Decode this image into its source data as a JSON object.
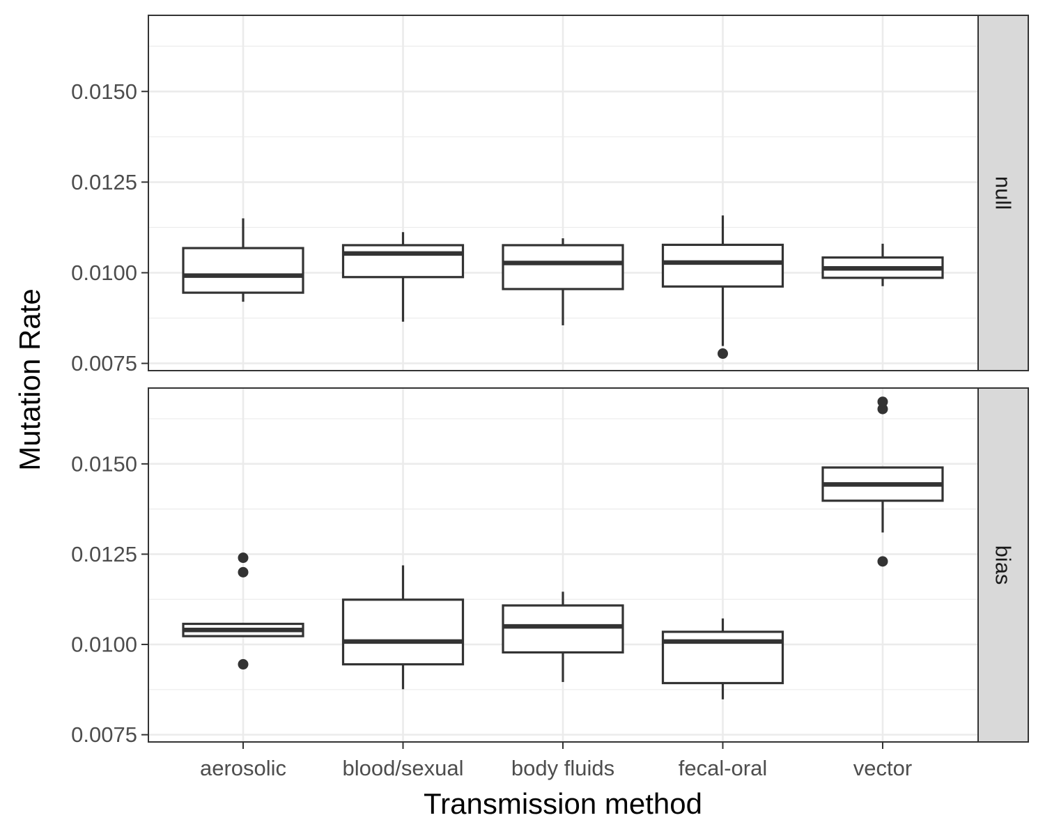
{
  "chart_data": {
    "type": "boxplot",
    "xlabel": "Transmission method",
    "ylabel": "Mutation Rate",
    "categories": [
      "aerosolic",
      "blood/sexual",
      "body fluids",
      "fecal-oral",
      "vector"
    ],
    "y_ticks": [
      "0.0075",
      "0.0100",
      "0.0125",
      "0.0150"
    ],
    "ylim": [
      0.0073,
      0.0171
    ],
    "grid": true,
    "facet_layout": "rows, strip labels on right",
    "colors": {
      "box_stroke": "#333333",
      "grid": "#ebebeb",
      "strip_fill": "#d9d9d9",
      "panel_border": "#333333"
    },
    "panels": [
      {
        "label": "null",
        "boxes": [
          {
            "category": "aerosolic",
            "whisker_low": 0.0092,
            "q1": 0.00945,
            "median": 0.00992,
            "q3": 0.01068,
            "whisker_high": 0.0115,
            "outliers": []
          },
          {
            "category": "blood/sexual",
            "whisker_low": 0.00865,
            "q1": 0.00988,
            "median": 0.01053,
            "q3": 0.01076,
            "whisker_high": 0.01112,
            "outliers": []
          },
          {
            "category": "body fluids",
            "whisker_low": 0.00855,
            "q1": 0.00955,
            "median": 0.01027,
            "q3": 0.01076,
            "whisker_high": 0.01095,
            "outliers": []
          },
          {
            "category": "fecal-oral",
            "whisker_low": 0.00798,
            "q1": 0.00962,
            "median": 0.01028,
            "q3": 0.01077,
            "whisker_high": 0.01158,
            "outliers": [
              0.00777
            ]
          },
          {
            "category": "vector",
            "whisker_low": 0.00963,
            "q1": 0.00986,
            "median": 0.01012,
            "q3": 0.01042,
            "whisker_high": 0.0108,
            "outliers": []
          }
        ]
      },
      {
        "label": "bias",
        "boxes": [
          {
            "category": "aerosolic",
            "whisker_low": 0.01023,
            "q1": 0.01023,
            "median": 0.0104,
            "q3": 0.01057,
            "whisker_high": 0.01057,
            "outliers": [
              0.00945,
              0.012,
              0.0124
            ]
          },
          {
            "category": "blood/sexual",
            "whisker_low": 0.00876,
            "q1": 0.00945,
            "median": 0.01008,
            "q3": 0.01124,
            "whisker_high": 0.01219,
            "outliers": []
          },
          {
            "category": "body fluids",
            "whisker_low": 0.00896,
            "q1": 0.00978,
            "median": 0.0105,
            "q3": 0.01108,
            "whisker_high": 0.01146,
            "outliers": []
          },
          {
            "category": "fecal-oral",
            "whisker_low": 0.00848,
            "q1": 0.00893,
            "median": 0.01008,
            "q3": 0.01035,
            "whisker_high": 0.01072,
            "outliers": []
          },
          {
            "category": "vector",
            "whisker_low": 0.0131,
            "q1": 0.01398,
            "median": 0.01443,
            "q3": 0.0149,
            "whisker_high": 0.0149,
            "outliers": [
              0.0123,
              0.01652,
              0.01672
            ]
          }
        ]
      }
    ]
  }
}
